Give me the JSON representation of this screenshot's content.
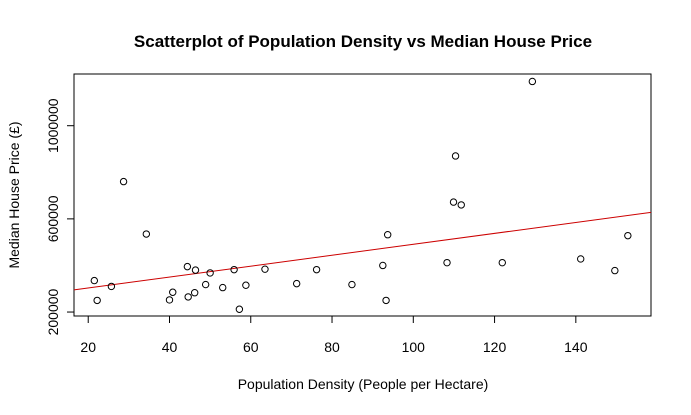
{
  "chart_data": {
    "type": "scatter",
    "title": "Scatterplot of Population Density vs Median House Price",
    "xlabel": "Population Density (People per Hectare)",
    "ylabel": "Median House Price (£)",
    "xlim": [
      16.5,
      158.5
    ],
    "ylim": [
      183000,
      1222000
    ],
    "xticks": [
      20,
      40,
      60,
      80,
      100,
      120,
      140
    ],
    "yticks": [
      200000,
      600000,
      1000000
    ],
    "xtick_labels": [
      "20",
      "40",
      "60",
      "80",
      "100",
      "120",
      "140"
    ],
    "ytick_labels": [
      "200000",
      "600000",
      "1000000"
    ],
    "grid": false,
    "legend": "none",
    "points": [
      {
        "x": 21.5,
        "y": 335000
      },
      {
        "x": 22.2,
        "y": 250000
      },
      {
        "x": 25.7,
        "y": 310000
      },
      {
        "x": 28.7,
        "y": 760000
      },
      {
        "x": 34.3,
        "y": 535000
      },
      {
        "x": 40.0,
        "y": 252000
      },
      {
        "x": 40.8,
        "y": 285000
      },
      {
        "x": 44.4,
        "y": 395000
      },
      {
        "x": 44.6,
        "y": 265000
      },
      {
        "x": 46.2,
        "y": 283000
      },
      {
        "x": 46.4,
        "y": 380000
      },
      {
        "x": 48.9,
        "y": 318000
      },
      {
        "x": 50.0,
        "y": 368000
      },
      {
        "x": 53.1,
        "y": 305000
      },
      {
        "x": 55.9,
        "y": 382000
      },
      {
        "x": 57.2,
        "y": 212000
      },
      {
        "x": 58.8,
        "y": 315000
      },
      {
        "x": 63.5,
        "y": 384000
      },
      {
        "x": 71.3,
        "y": 322000
      },
      {
        "x": 76.2,
        "y": 382000
      },
      {
        "x": 84.9,
        "y": 318000
      },
      {
        "x": 92.5,
        "y": 400000
      },
      {
        "x": 93.3,
        "y": 250000
      },
      {
        "x": 93.7,
        "y": 532000
      },
      {
        "x": 108.3,
        "y": 412000
      },
      {
        "x": 109.9,
        "y": 672000
      },
      {
        "x": 110.4,
        "y": 870000
      },
      {
        "x": 111.8,
        "y": 660000
      },
      {
        "x": 121.9,
        "y": 412000
      },
      {
        "x": 129.3,
        "y": 1190000
      },
      {
        "x": 141.2,
        "y": 428000
      },
      {
        "x": 149.6,
        "y": 378000
      },
      {
        "x": 152.8,
        "y": 528000
      }
    ],
    "trend_line": {
      "x": [
        16.5,
        158.5
      ],
      "y": [
        295000,
        628000
      ],
      "color": "#cc0000"
    }
  },
  "colors": {
    "points": "#000000",
    "trend": "#cc0000",
    "background": "#ffffff"
  }
}
